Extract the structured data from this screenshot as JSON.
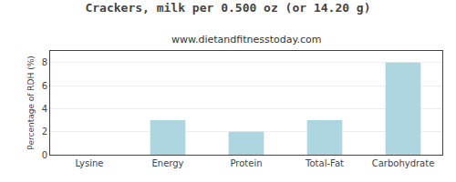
{
  "chart_data": {
    "type": "bar",
    "title": "Crackers, milk per 0.500 oz (or 14.20 g)",
    "subtitle": "www.dietandfitnesstoday.com",
    "categories": [
      "Lysine",
      "Energy",
      "Protein",
      "Total-Fat",
      "Carbohydrate"
    ],
    "values": [
      0,
      3,
      2,
      3,
      8
    ],
    "color": "#aed6e0",
    "ylabel": "Percentage of RDH (%)",
    "ylim": [
      0,
      9
    ],
    "yticks": [
      0,
      2,
      4,
      6,
      8
    ],
    "grid": true
  }
}
